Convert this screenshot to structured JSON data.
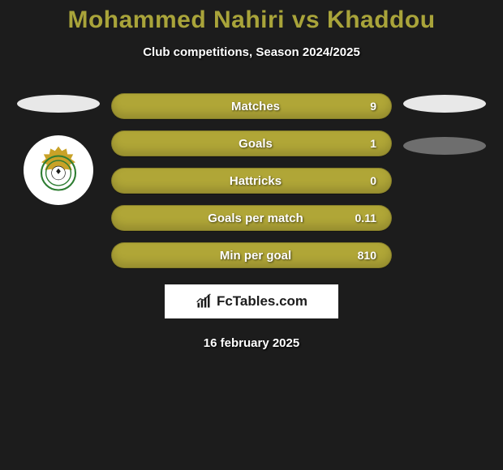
{
  "header": {
    "title": "Mohammed Nahiri vs Khaddou",
    "title_color": "#a9a43a",
    "subtitle": "Club competitions, Season 2024/2025"
  },
  "left": {
    "ellipse_color": "#e8e8e8",
    "badge_bg": "#ffffff",
    "badge_crown_color": "#c9a227",
    "badge_ring_color": "#2e7d32"
  },
  "right": {
    "ellipse_color": "#e8e8e8",
    "ellipse2_color": "#6e6e6e"
  },
  "stats": {
    "bar_color": "#b0a637",
    "rows": [
      {
        "label": "Matches",
        "value": "9"
      },
      {
        "label": "Goals",
        "value": "1"
      },
      {
        "label": "Hattricks",
        "value": "0"
      },
      {
        "label": "Goals per match",
        "value": "0.11"
      },
      {
        "label": "Min per goal",
        "value": "810"
      }
    ]
  },
  "brand": {
    "text": "FcTables.com",
    "icon_color": "#1c1c1c",
    "bg": "#ffffff"
  },
  "footer": {
    "date": "16 february 2025"
  },
  "colors": {
    "page_bg": "#1c1c1c",
    "text_white": "#ffffff"
  }
}
